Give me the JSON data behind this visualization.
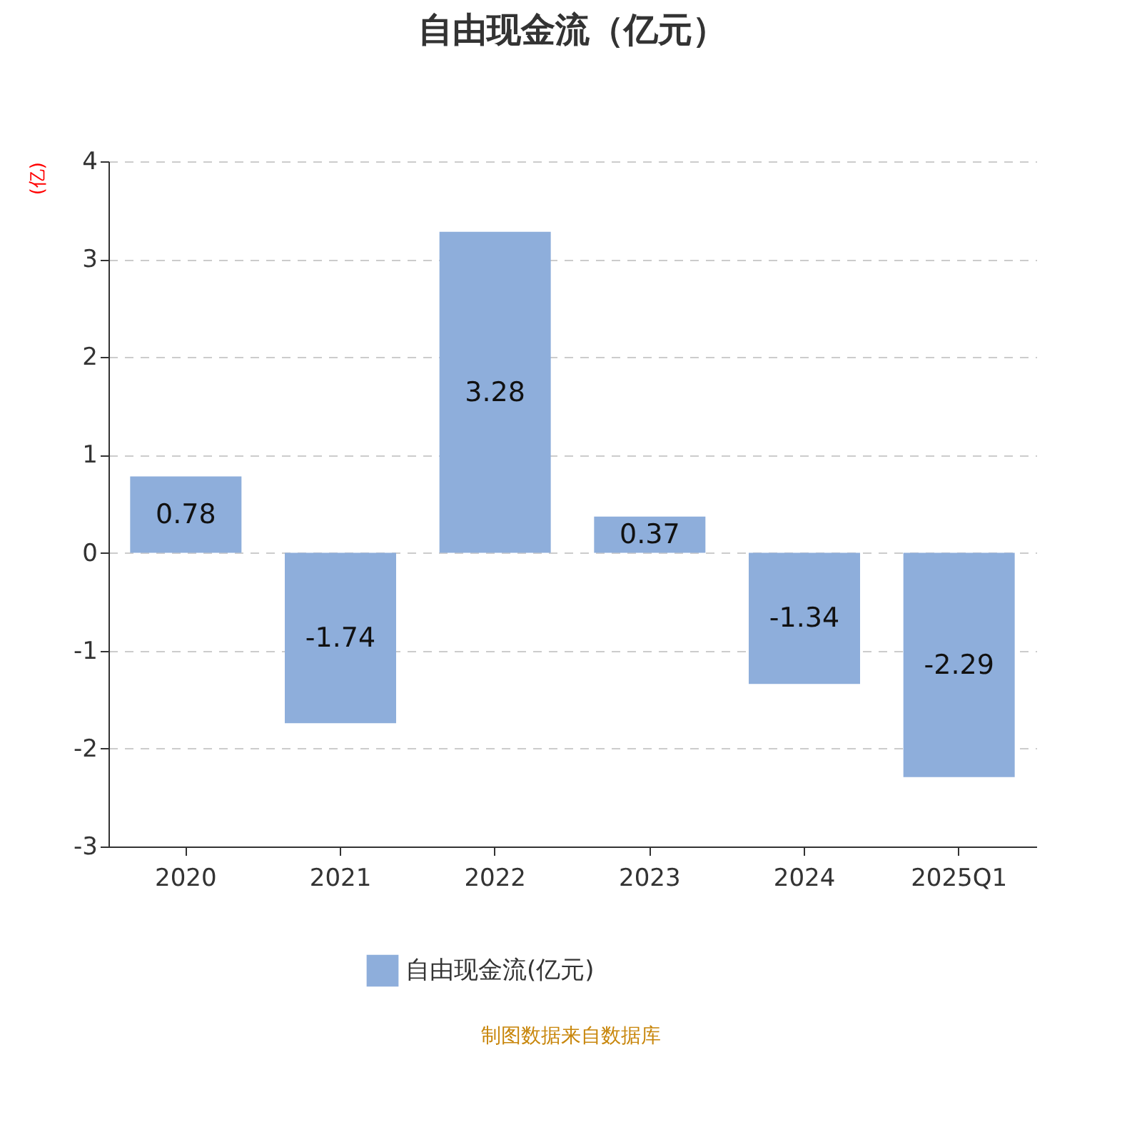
{
  "chart_data": {
    "type": "bar",
    "title": "自由现金流（亿元）",
    "ylabel": "(亿)",
    "categories": [
      "2020",
      "2021",
      "2022",
      "2023",
      "2024",
      "2025Q1"
    ],
    "series": [
      {
        "name": "自由现金流(亿元)",
        "color": "#8eaedb",
        "values": [
          0.78,
          -1.74,
          3.28,
          0.37,
          -1.34,
          -2.29
        ]
      }
    ],
    "ylim": [
      -3,
      4
    ],
    "yticks": [
      -3,
      -2,
      -1,
      0,
      1,
      2,
      3,
      4
    ],
    "grid": "y",
    "legend": "bottom",
    "data_labels": true,
    "annotations": [
      "制图数据来自数据库"
    ]
  }
}
